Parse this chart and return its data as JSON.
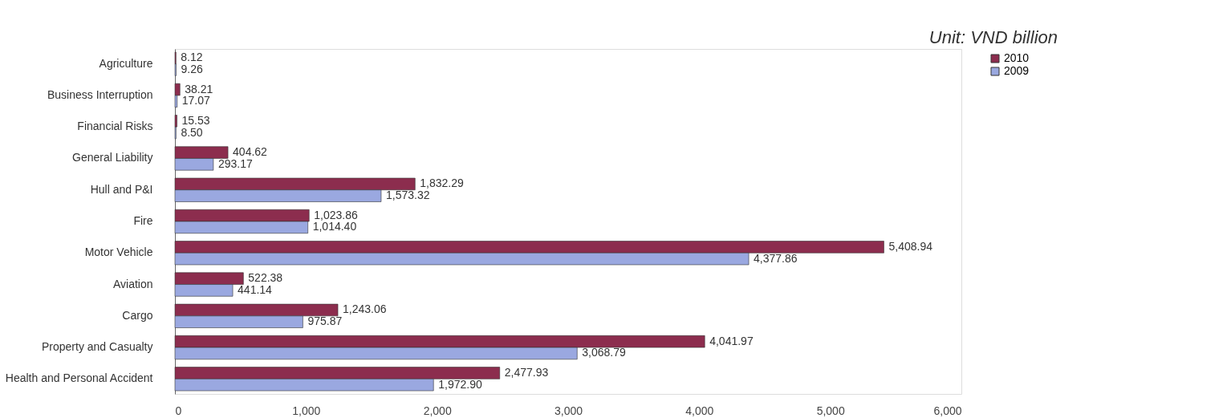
{
  "chart_data": {
    "type": "bar",
    "orientation": "horizontal",
    "categories": [
      "Agriculture",
      "Business Interruption",
      "Financial Risks",
      "General Liability",
      "Hull and P&I",
      "Fire",
      "Motor Vehicle",
      "Aviation",
      "Cargo",
      "Property and Casualty",
      "Health and Personal Accident"
    ],
    "series": [
      {
        "name": "2010",
        "color": "#8c2d4e",
        "values": [
          8.12,
          38.21,
          15.53,
          404.62,
          1832.29,
          1023.86,
          5408.94,
          522.38,
          1243.06,
          4041.97,
          2477.93
        ],
        "value_labels": [
          "8.12",
          "38.21",
          "15.53",
          "404.62",
          "1,832.29",
          "1,023.86",
          "5,408.94",
          "522.38",
          "1,243.06",
          "4,041.97",
          "2,477.93"
        ]
      },
      {
        "name": "2009",
        "color": "#9aa8e0",
        "values": [
          9.26,
          17.07,
          8.5,
          293.17,
          1573.32,
          1014.4,
          4377.86,
          441.14,
          975.87,
          3068.79,
          1972.9
        ],
        "value_labels": [
          "9.26",
          "17.07",
          "8.50",
          "293.17",
          "1,573.32",
          "1,014.40",
          "4,377.86",
          "441.14",
          "975.87",
          "3,068.79",
          "1,972.90"
        ]
      }
    ],
    "xlim": [
      0,
      6000
    ],
    "xticks": [
      0,
      {
        "value": 1000,
        "label": "1,000"
      },
      {
        "value": 2000,
        "label": "2,000"
      },
      {
        "value": 3000,
        "label": "3,000"
      },
      {
        "value": 4000,
        "label": "4,000"
      },
      {
        "value": 5000,
        "label": "5,000"
      },
      {
        "value": 6000,
        "label": "6,000"
      }
    ],
    "legend": "right",
    "grid": false,
    "annotations": [
      "Unit: VND billion"
    ]
  }
}
